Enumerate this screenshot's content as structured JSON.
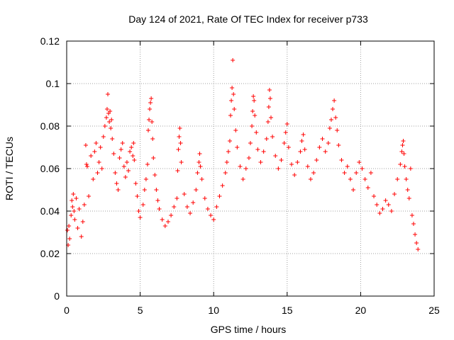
{
  "chart_data": {
    "type": "scatter",
    "title": "Day 124 of 2021, Rate Of TEC Index for receiver p733",
    "xlabel": "GPS time / hours",
    "ylabel": "ROTI / TECUs",
    "xlim": [
      0,
      25
    ],
    "ylim": [
      0,
      0.12
    ],
    "xticks": [
      0,
      5,
      10,
      15,
      20,
      25
    ],
    "yticks": [
      0,
      0.02,
      0.04,
      0.06,
      0.08,
      0.1,
      0.12
    ],
    "xtick_labels": [
      "0",
      "5",
      "10",
      "15",
      "20",
      "25"
    ],
    "ytick_labels": [
      "0",
      "0.02",
      "0.04",
      "0.06",
      "0.08",
      "0.1",
      "0.12"
    ],
    "grid": true,
    "marker": "+",
    "color": "#ff0000",
    "series": [
      {
        "points": [
          [
            0.05,
            0.031
          ],
          [
            0.1,
            0.024
          ],
          [
            0.15,
            0.033
          ],
          [
            0.2,
            0.027
          ],
          [
            0.3,
            0.038
          ],
          [
            0.35,
            0.045
          ],
          [
            0.4,
            0.042
          ],
          [
            0.45,
            0.048
          ],
          [
            0.5,
            0.04
          ],
          [
            0.55,
            0.036
          ],
          [
            0.65,
            0.046
          ],
          [
            0.75,
            0.032
          ],
          [
            0.85,
            0.041
          ],
          [
            1.0,
            0.028
          ],
          [
            1.1,
            0.035
          ],
          [
            1.2,
            0.043
          ],
          [
            1.3,
            0.071
          ],
          [
            1.35,
            0.062
          ],
          [
            1.4,
            0.061
          ],
          [
            1.5,
            0.047
          ],
          [
            1.65,
            0.066
          ],
          [
            1.8,
            0.055
          ],
          [
            1.9,
            0.068
          ],
          [
            2.0,
            0.072
          ],
          [
            2.1,
            0.058
          ],
          [
            2.2,
            0.063
          ],
          [
            2.3,
            0.07
          ],
          [
            2.4,
            0.06
          ],
          [
            2.5,
            0.075
          ],
          [
            2.6,
            0.08
          ],
          [
            2.7,
            0.084
          ],
          [
            2.75,
            0.088
          ],
          [
            2.8,
            0.095
          ],
          [
            2.85,
            0.086
          ],
          [
            2.9,
            0.082
          ],
          [
            2.95,
            0.087
          ],
          [
            3.0,
            0.079
          ],
          [
            3.05,
            0.083
          ],
          [
            3.1,
            0.074
          ],
          [
            3.2,
            0.067
          ],
          [
            3.3,
            0.058
          ],
          [
            3.4,
            0.053
          ],
          [
            3.5,
            0.05
          ],
          [
            3.6,
            0.065
          ],
          [
            3.7,
            0.069
          ],
          [
            3.8,
            0.072
          ],
          [
            3.9,
            0.061
          ],
          [
            4.0,
            0.056
          ],
          [
            4.1,
            0.063
          ],
          [
            4.2,
            0.059
          ],
          [
            4.3,
            0.068
          ],
          [
            4.4,
            0.07
          ],
          [
            4.5,
            0.066
          ],
          [
            4.55,
            0.072
          ],
          [
            4.6,
            0.064
          ],
          [
            4.7,
            0.053
          ],
          [
            4.8,
            0.047
          ],
          [
            4.9,
            0.04
          ],
          [
            5.0,
            0.037
          ],
          [
            5.2,
            0.043
          ],
          [
            5.3,
            0.05
          ],
          [
            5.4,
            0.055
          ],
          [
            5.5,
            0.062
          ],
          [
            5.55,
            0.078
          ],
          [
            5.6,
            0.083
          ],
          [
            5.65,
            0.088
          ],
          [
            5.7,
            0.091
          ],
          [
            5.75,
            0.093
          ],
          [
            5.8,
            0.082
          ],
          [
            5.85,
            0.074
          ],
          [
            5.9,
            0.065
          ],
          [
            6.0,
            0.057
          ],
          [
            6.1,
            0.05
          ],
          [
            6.2,
            0.045
          ],
          [
            6.3,
            0.041
          ],
          [
            6.5,
            0.036
          ],
          [
            6.7,
            0.033
          ],
          [
            6.9,
            0.035
          ],
          [
            7.1,
            0.038
          ],
          [
            7.3,
            0.042
          ],
          [
            7.5,
            0.046
          ],
          [
            7.55,
            0.059
          ],
          [
            7.6,
            0.069
          ],
          [
            7.65,
            0.075
          ],
          [
            7.7,
            0.079
          ],
          [
            7.75,
            0.072
          ],
          [
            7.8,
            0.063
          ],
          [
            8.0,
            0.048
          ],
          [
            8.2,
            0.042
          ],
          [
            8.4,
            0.039
          ],
          [
            8.6,
            0.044
          ],
          [
            8.8,
            0.05
          ],
          [
            8.9,
            0.058
          ],
          [
            9.0,
            0.063
          ],
          [
            9.05,
            0.067
          ],
          [
            9.1,
            0.061
          ],
          [
            9.2,
            0.055
          ],
          [
            9.4,
            0.046
          ],
          [
            9.6,
            0.041
          ],
          [
            9.8,
            0.038
          ],
          [
            10.0,
            0.036
          ],
          [
            10.2,
            0.042
          ],
          [
            10.4,
            0.047
          ],
          [
            10.6,
            0.052
          ],
          [
            10.8,
            0.058
          ],
          [
            10.9,
            0.063
          ],
          [
            11.0,
            0.068
          ],
          [
            11.1,
            0.073
          ],
          [
            11.15,
            0.085
          ],
          [
            11.2,
            0.092
          ],
          [
            11.25,
            0.098
          ],
          [
            11.3,
            0.111
          ],
          [
            11.35,
            0.095
          ],
          [
            11.4,
            0.088
          ],
          [
            11.5,
            0.078
          ],
          [
            11.6,
            0.07
          ],
          [
            11.8,
            0.061
          ],
          [
            12.0,
            0.055
          ],
          [
            12.2,
            0.06
          ],
          [
            12.4,
            0.065
          ],
          [
            12.5,
            0.072
          ],
          [
            12.6,
            0.08
          ],
          [
            12.65,
            0.087
          ],
          [
            12.7,
            0.094
          ],
          [
            12.75,
            0.092
          ],
          [
            12.8,
            0.085
          ],
          [
            12.9,
            0.077
          ],
          [
            13.0,
            0.069
          ],
          [
            13.2,
            0.063
          ],
          [
            13.4,
            0.068
          ],
          [
            13.6,
            0.074
          ],
          [
            13.7,
            0.082
          ],
          [
            13.75,
            0.089
          ],
          [
            13.8,
            0.097
          ],
          [
            13.85,
            0.093
          ],
          [
            13.9,
            0.084
          ],
          [
            14.0,
            0.075
          ],
          [
            14.2,
            0.066
          ],
          [
            14.4,
            0.06
          ],
          [
            14.6,
            0.064
          ],
          [
            14.8,
            0.072
          ],
          [
            14.9,
            0.077
          ],
          [
            15.0,
            0.081
          ],
          [
            15.1,
            0.07
          ],
          [
            15.3,
            0.062
          ],
          [
            15.5,
            0.057
          ],
          [
            15.7,
            0.063
          ],
          [
            15.9,
            0.068
          ],
          [
            16.0,
            0.073
          ],
          [
            16.1,
            0.076
          ],
          [
            16.2,
            0.069
          ],
          [
            16.4,
            0.061
          ],
          [
            16.6,
            0.055
          ],
          [
            16.8,
            0.058
          ],
          [
            17.0,
            0.064
          ],
          [
            17.2,
            0.07
          ],
          [
            17.4,
            0.074
          ],
          [
            17.6,
            0.068
          ],
          [
            17.8,
            0.072
          ],
          [
            17.9,
            0.079
          ],
          [
            18.0,
            0.083
          ],
          [
            18.1,
            0.088
          ],
          [
            18.2,
            0.092
          ],
          [
            18.3,
            0.084
          ],
          [
            18.4,
            0.078
          ],
          [
            18.5,
            0.071
          ],
          [
            18.7,
            0.064
          ],
          [
            18.9,
            0.058
          ],
          [
            19.1,
            0.061
          ],
          [
            19.3,
            0.055
          ],
          [
            19.5,
            0.05
          ],
          [
            19.7,
            0.058
          ],
          [
            19.9,
            0.063
          ],
          [
            20.1,
            0.06
          ],
          [
            20.3,
            0.055
          ],
          [
            20.5,
            0.051
          ],
          [
            20.7,
            0.058
          ],
          [
            20.9,
            0.047
          ],
          [
            21.1,
            0.043
          ],
          [
            21.3,
            0.039
          ],
          [
            21.5,
            0.041
          ],
          [
            21.7,
            0.045
          ],
          [
            21.9,
            0.043
          ],
          [
            22.1,
            0.04
          ],
          [
            22.3,
            0.048
          ],
          [
            22.5,
            0.055
          ],
          [
            22.7,
            0.062
          ],
          [
            22.8,
            0.068
          ],
          [
            22.85,
            0.071
          ],
          [
            22.9,
            0.073
          ],
          [
            22.95,
            0.067
          ],
          [
            23.0,
            0.061
          ],
          [
            23.1,
            0.055
          ],
          [
            23.2,
            0.05
          ],
          [
            23.3,
            0.046
          ],
          [
            23.4,
            0.06
          ],
          [
            23.5,
            0.038
          ],
          [
            23.6,
            0.034
          ],
          [
            23.7,
            0.029
          ],
          [
            23.8,
            0.025
          ],
          [
            23.9,
            0.022
          ]
        ]
      }
    ]
  }
}
